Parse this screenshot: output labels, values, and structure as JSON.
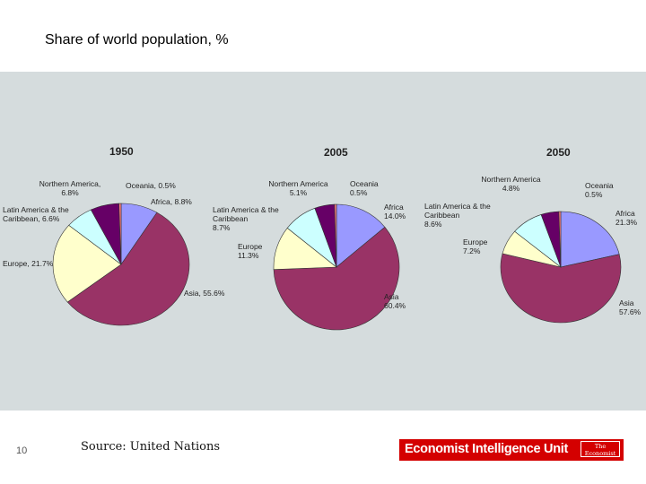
{
  "slide_title": "Share of world population, %",
  "chart_data": [
    {
      "type": "pie",
      "title": "1950",
      "categories": [
        "Africa",
        "Asia",
        "Europe",
        "Latin America & the Caribbean",
        "Northern America",
        "Oceania"
      ],
      "values": [
        8.8,
        55.6,
        21.7,
        6.6,
        6.8,
        0.5
      ],
      "value_labels": [
        "8.8%",
        "55.6%",
        "21.7%",
        "6.6%",
        "6.8%",
        "0.5%"
      ],
      "label_separator": ",",
      "colors": [
        "#9999ff",
        "#993366",
        "#ffffcc",
        "#ccffff",
        "#660066",
        "#ff8080"
      ]
    },
    {
      "type": "pie",
      "title": "2005",
      "categories": [
        "Africa",
        "Asia",
        "Europe",
        "Latin America & the Caribbean",
        "Northern America",
        "Oceania"
      ],
      "values": [
        14.0,
        60.4,
        11.3,
        8.7,
        5.1,
        0.5
      ],
      "value_labels": [
        "14.0%",
        "60.4%",
        "11.3%",
        "8.7%",
        "5.1%",
        "0.5%"
      ],
      "colors": [
        "#9999ff",
        "#993366",
        "#ffffcc",
        "#ccffff",
        "#660066",
        "#ff8080"
      ]
    },
    {
      "type": "pie",
      "title": "2050",
      "categories": [
        "Africa",
        "Asia",
        "Europe",
        "Latin America & the Caribbean",
        "Northern America",
        "Oceania"
      ],
      "values": [
        21.3,
        57.6,
        7.2,
        8.6,
        4.8,
        0.5
      ],
      "value_labels": [
        "21.3%",
        "57.6%",
        "7.2%",
        "8.6%",
        "4.8%",
        "0.5%"
      ],
      "colors": [
        "#9999ff",
        "#993366",
        "#ffffcc",
        "#ccffff",
        "#660066",
        "#ff8080"
      ]
    }
  ],
  "footer": {
    "page_number": "10",
    "source": "Source: United Nations",
    "logo": "Economist Intelligence Unit",
    "logo_badge": "The Economist"
  }
}
